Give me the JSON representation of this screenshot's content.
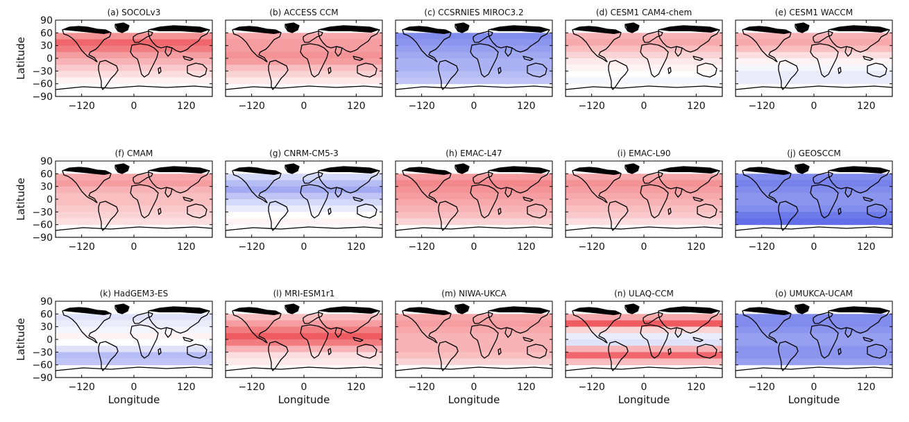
{
  "figure": {
    "ylabel": "Latitude",
    "xlabel": "Longitude",
    "xticks": [
      "−120",
      "0",
      "120"
    ],
    "yticks": [
      "90",
      "60",
      "30",
      "0",
      "−30",
      "−60",
      "−90"
    ]
  },
  "chart_data": {
    "type": "heatmap",
    "colors": {
      "positive": "#e8262d",
      "negative": "#2d3fe0",
      "neutral": "#ffffff",
      "coast": "#000000"
    },
    "xlim": [
      -180,
      180
    ],
    "ylim": [
      -90,
      90
    ],
    "xtick_values": [
      -120,
      0,
      120
    ],
    "ytick_values": [
      90,
      60,
      30,
      0,
      -30,
      -60,
      -90
    ],
    "lat_bands": [
      52.5,
      37.5,
      22.5,
      7.5,
      -7.5,
      -22.5,
      -37.5,
      -52.5
    ],
    "panels": [
      {
        "title": "(a) SOCOLv3",
        "band_values": [
          0.5,
          0.7,
          0.6,
          0.45,
          0.35,
          0.25,
          0.15,
          0.05
        ]
      },
      {
        "title": "(b) ACCESS CCM",
        "band_values": [
          0.4,
          0.45,
          0.45,
          0.5,
          0.45,
          0.3,
          0.2,
          0.1
        ]
      },
      {
        "title": "(c) CCSRNIES MIROC3.2",
        "band_values": [
          -0.6,
          -0.55,
          -0.5,
          -0.45,
          -0.4,
          -0.4,
          -0.35,
          -0.3
        ]
      },
      {
        "title": "(d) CESM1 CAM4-chem",
        "band_values": [
          0.35,
          0.4,
          0.3,
          0.2,
          0.1,
          0.05,
          0.0,
          -0.05
        ]
      },
      {
        "title": "(e) CESM1 WACCM",
        "band_values": [
          0.35,
          0.4,
          0.3,
          0.15,
          0.05,
          -0.05,
          -0.1,
          -0.1
        ]
      },
      {
        "title": "(f) CMAM",
        "band_values": [
          0.4,
          0.45,
          0.35,
          0.3,
          0.3,
          0.25,
          0.2,
          0.15
        ]
      },
      {
        "title": "(g) CNRM-CM5-3",
        "band_values": [
          -0.2,
          -0.35,
          -0.45,
          -0.3,
          -0.2,
          -0.1,
          0.0,
          0.05
        ]
      },
      {
        "title": "(h) EMAC-L47",
        "band_values": [
          0.45,
          0.55,
          0.5,
          0.45,
          0.4,
          0.35,
          0.3,
          0.2
        ]
      },
      {
        "title": "(i) EMAC-L90",
        "band_values": [
          0.4,
          0.5,
          0.45,
          0.4,
          0.35,
          0.3,
          0.25,
          0.15
        ]
      },
      {
        "title": "(j) GEOSCCM",
        "band_values": [
          -0.6,
          -0.65,
          -0.6,
          -0.55,
          -0.55,
          -0.6,
          -0.7,
          -0.75
        ]
      },
      {
        "title": "(k) HadGEM3-ES",
        "band_values": [
          -0.15,
          -0.1,
          -0.05,
          0.05,
          0.0,
          -0.15,
          -0.35,
          -0.3
        ]
      },
      {
        "title": "(l) MRI-ESM1r1",
        "band_values": [
          0.3,
          0.45,
          0.6,
          0.75,
          0.6,
          0.35,
          0.15,
          0.1
        ]
      },
      {
        "title": "(m) NIWA-UKCA",
        "band_values": [
          0.4,
          0.45,
          0.4,
          0.35,
          0.35,
          0.35,
          0.3,
          0.2
        ]
      },
      {
        "title": "(n) ULAQ-CCM",
        "band_values": [
          0.4,
          0.75,
          0.2,
          -0.1,
          -0.15,
          0.35,
          0.7,
          0.3
        ]
      },
      {
        "title": "(o) UMUKCA-UCAM",
        "band_values": [
          -0.6,
          -0.6,
          -0.55,
          -0.5,
          -0.5,
          -0.55,
          -0.55,
          -0.5
        ]
      }
    ]
  }
}
